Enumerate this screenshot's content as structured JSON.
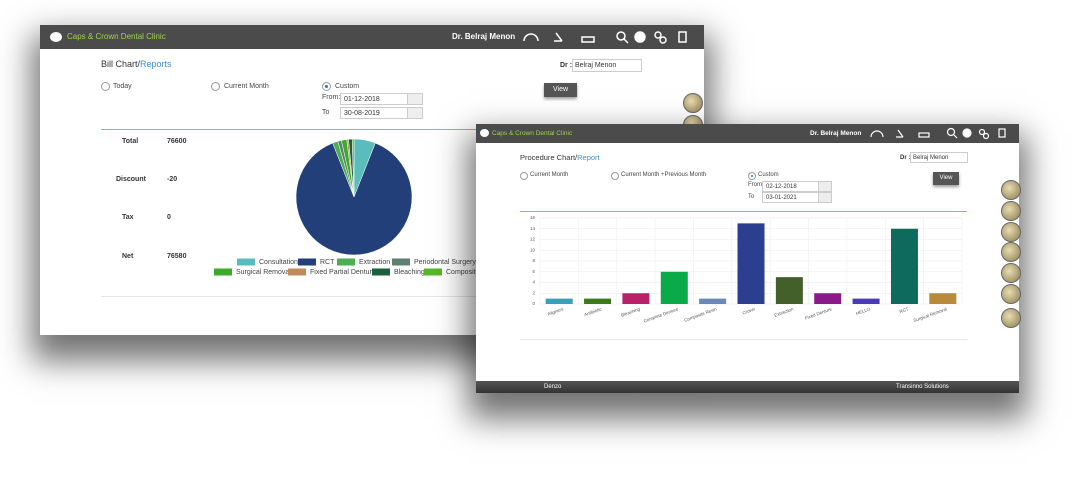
{
  "windows": [
    {
      "header": {
        "clinic": "Caps & Crown Dental Clinic",
        "user": "Dr. Belraj Menon"
      },
      "title": "Bill Chart/",
      "title_link": "Reports",
      "filters": {
        "options": [
          "Today",
          "Current Month",
          "Custom"
        ],
        "from_label": "From:",
        "from": "01-12-2018",
        "to_label": "To",
        "to": "30-08-2019"
      },
      "doctor_label": "Dr :",
      "doctor": "Belraj Menon",
      "button": "View",
      "summary": [
        {
          "label": "Total",
          "value": 76600
        },
        {
          "label": "Discount",
          "value": -20
        },
        {
          "label": "Tax",
          "value": 0
        },
        {
          "label": "Net",
          "value": 76580
        }
      ]
    },
    {
      "header": {
        "clinic": "Caps & Crown Dental Clinic",
        "user": "Dr. Belraj Menon"
      },
      "title": "Procedure Chart/",
      "title_link": "Report",
      "filters": {
        "options": [
          "Current Month",
          "Current Month +Previous Month",
          "Custom"
        ],
        "from_label": "From:",
        "from": "02-12-2018",
        "to_label": "To",
        "to": "03-01-2021"
      },
      "doctor_label": "Dr :",
      "doctor": "Belraj Menon",
      "button": "View",
      "footer": {
        "left": "Denzo",
        "right": "Transinno Solutions"
      }
    }
  ],
  "chart_data": [
    {
      "type": "pie",
      "categories": [
        "Consultation",
        "RCT",
        "Extraction",
        "Periodontal Surgery",
        "Surgical Removal",
        "Fixed Partial Denture",
        "Bleaching",
        "Composit F"
      ],
      "values": [
        6,
        88,
        1.5,
        1,
        1.5,
        0.5,
        1,
        0.5
      ],
      "colors": [
        "#5bbcbc",
        "#233f7a",
        "#4caf50",
        "#5f7f6f",
        "#3daa2a",
        "#c08a5a",
        "#1a5f40",
        "#56b72a"
      ]
    },
    {
      "type": "bar",
      "categories": [
        "Aligners",
        "Antibiotic",
        "Bleaching",
        "Complete Denture",
        "Composite Resin",
        "Crown",
        "Extraction",
        "Fixed Denture",
        "HELLO",
        "RCT",
        "Surgical Removal"
      ],
      "values": [
        1,
        1,
        2,
        6,
        1,
        15,
        5,
        2,
        1,
        14,
        2
      ],
      "colors": [
        "#3aa0b8",
        "#3c7a1a",
        "#b8206a",
        "#0aaa4a",
        "#6a88b8",
        "#2a3f8f",
        "#44602a",
        "#8a1a8a",
        "#4a3ab8",
        "#0f6a5e",
        "#b88a3a"
      ],
      "ylim": [
        0,
        16
      ],
      "yticks": [
        0,
        2,
        4,
        6,
        8,
        10,
        12,
        14,
        16
      ],
      "grid": true
    }
  ]
}
